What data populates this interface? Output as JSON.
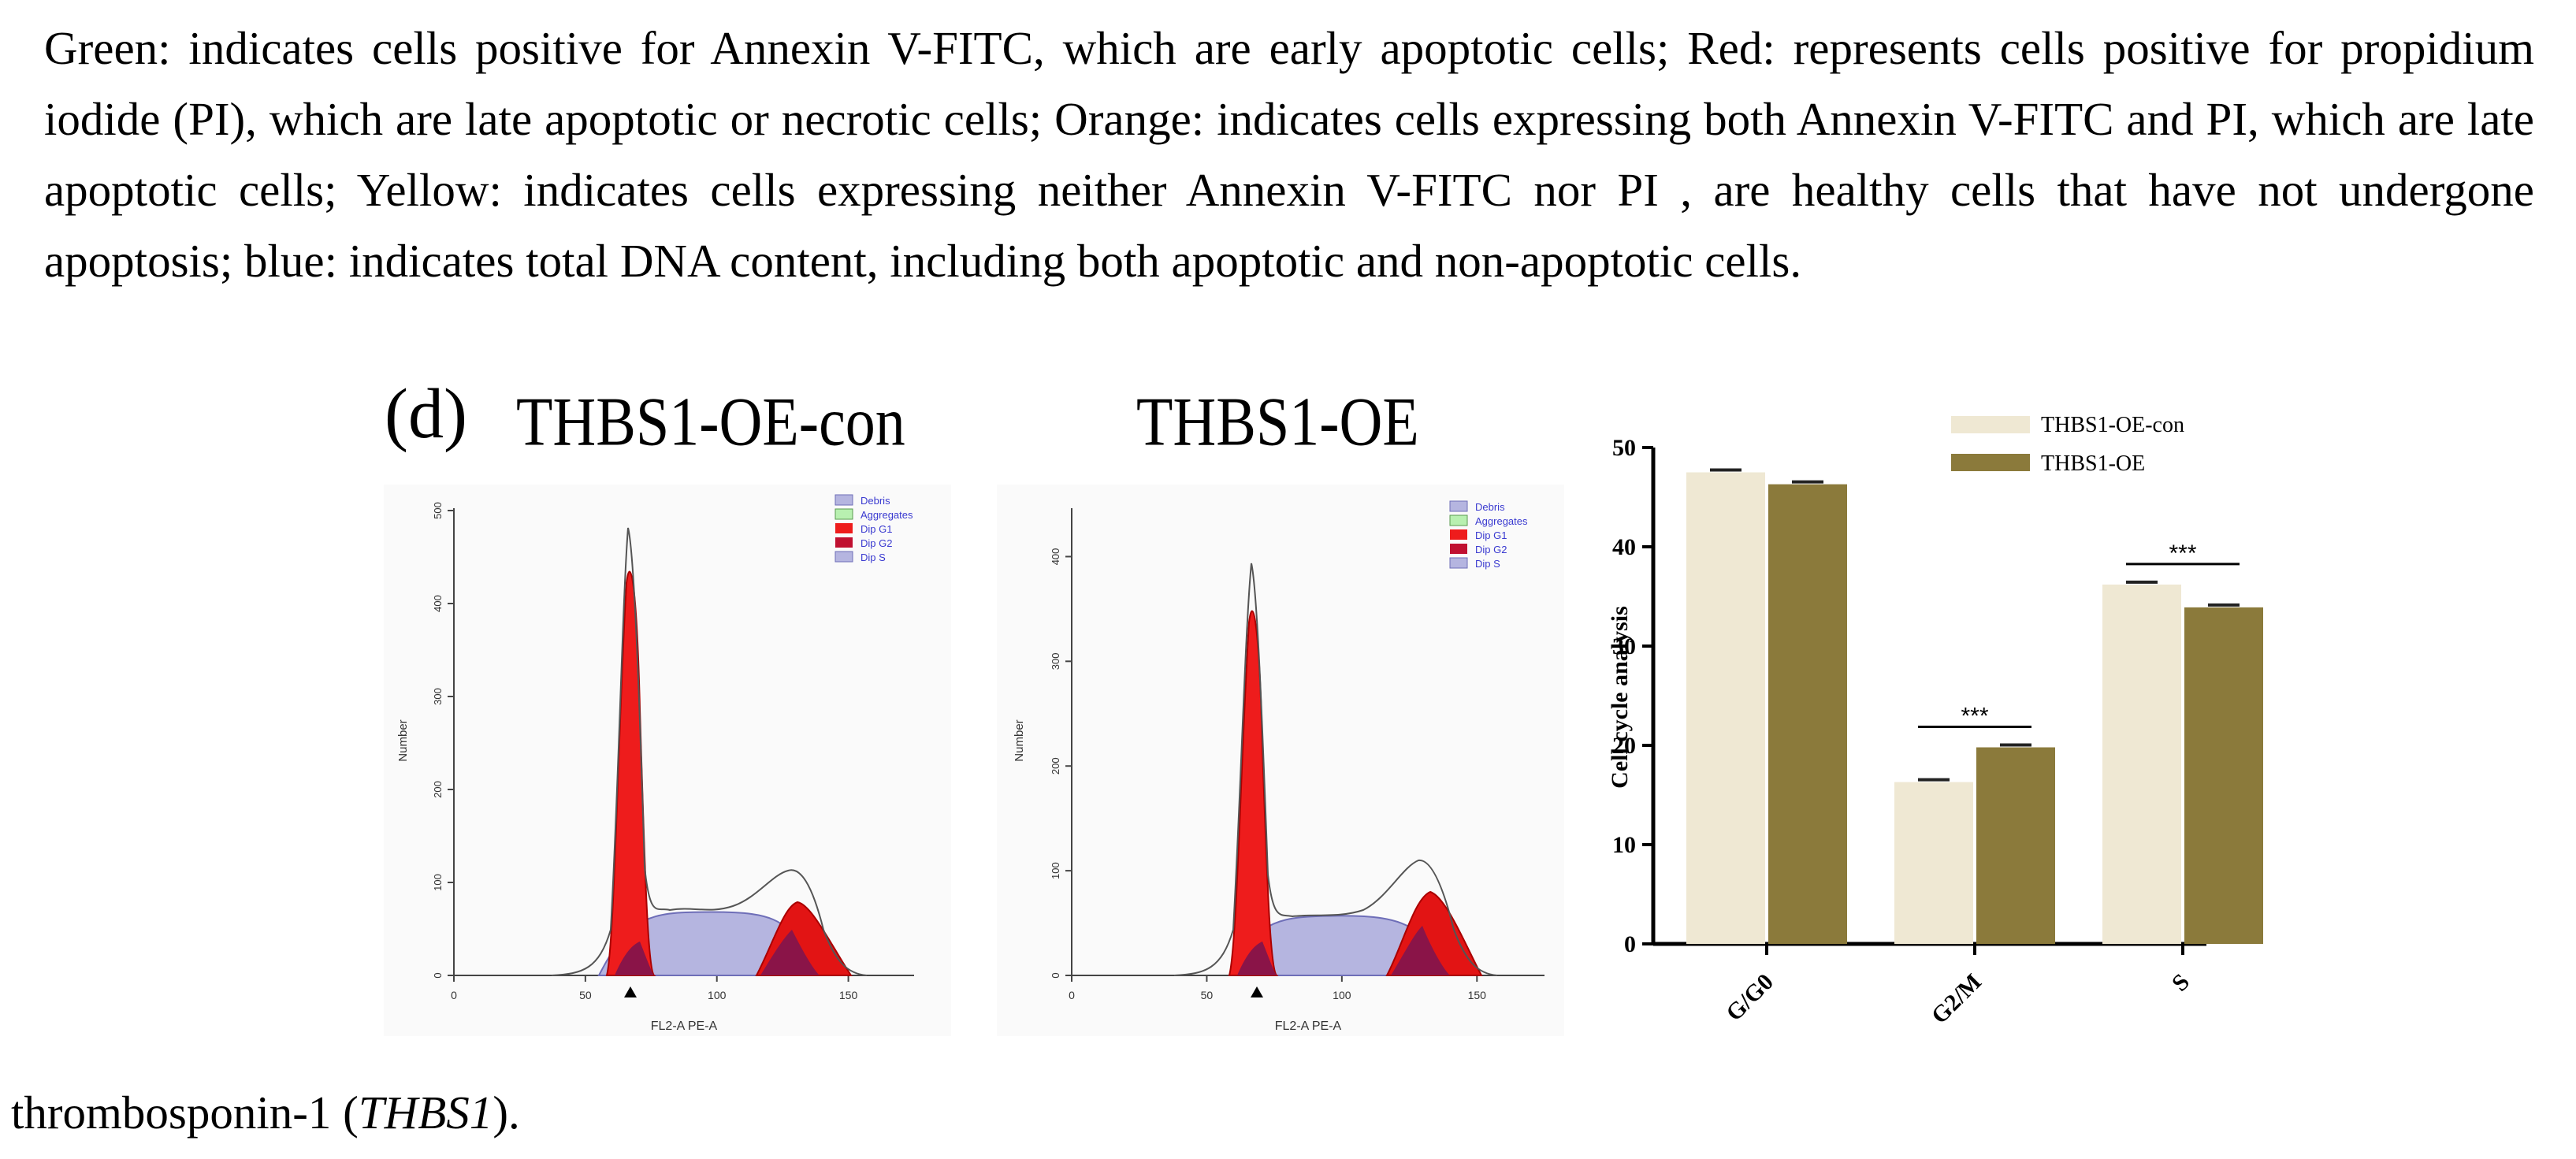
{
  "paragraph": {
    "text": "Green: indicates cells positive for Annexin V-FITC, which are early apoptotic cells; Red: represents cells positive for propidium iodide (PI), which are late apoptotic or necrotic cells; Orange: indicates cells expressing both Annexin V-FITC and PI, which are late apoptotic cells; Yellow: indicates cells expressing neither Annexin V-FITC nor PI , are healthy cells that have not undergone apoptosis; blue: indicates total DNA content, including both apoptotic and non-apoptotic cells."
  },
  "figure": {
    "panel_label": "(d)",
    "hist1_title": "THBS1-OE-con",
    "hist2_title": "THBS1-OE",
    "flow_legend": [
      "Debris",
      "Aggregates",
      "Dip G1",
      "Dip G2",
      "Dip S"
    ],
    "flow_ylabel": "Number",
    "flow_xlabel": "FL2-A PE-A",
    "hist1_yticks": [
      "0",
      "100",
      "200",
      "300",
      "400",
      "500"
    ],
    "hist2_yticks": [
      "0",
      "100",
      "200",
      "300",
      "400"
    ],
    "xticks": [
      "0",
      "50",
      "100",
      "150"
    ]
  },
  "chart_data": {
    "type": "bar",
    "title": "",
    "categories": [
      "G/G0",
      "G2/M",
      "S"
    ],
    "series": [
      {
        "name": "THBS1-OE-con",
        "values": [
          47.5,
          16.3,
          36.2
        ],
        "color": "#efe8d3"
      },
      {
        "name": "THBS1-OE",
        "values": [
          46.3,
          19.8,
          33.9
        ],
        "color": "#8b7a3b"
      }
    ],
    "xlabel": "",
    "ylabel": "Cell cycle analysis",
    "ylim": [
      0,
      50
    ],
    "yticks": [
      "0",
      "10",
      "20",
      "30",
      "40",
      "50"
    ],
    "significance": [
      {
        "category": "G2/M",
        "label": "***"
      },
      {
        "category": "S",
        "label": "***"
      }
    ],
    "legend_position": "top-right"
  },
  "caption": {
    "prefix": "thrombosponin-1 (",
    "gene": "THBS1",
    "suffix": ")."
  }
}
